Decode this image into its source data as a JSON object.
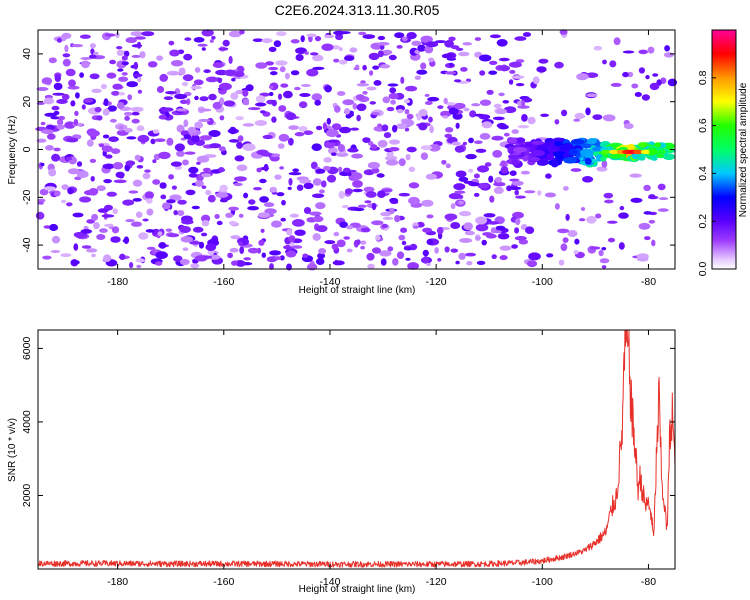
{
  "title": "C2E6.2024.313.11.30.R05",
  "chart_data": [
    {
      "type": "heatmap",
      "xlabel": "Height of straight line (km)",
      "ylabel": "Frequency (Hz)",
      "xlim": [
        -195,
        -75
      ],
      "ylim": [
        -50,
        50
      ],
      "x_ticks": [
        "-180",
        "-160",
        "-140",
        "-120",
        "-100",
        "-80"
      ],
      "y_ticks": [
        "-40",
        "-20",
        "0",
        "20",
        "40"
      ],
      "grid": false,
      "colorbar": {
        "label": "Normalized spectral amplitude",
        "range": [
          0.0,
          1.0
        ],
        "ticks": [
          "0.0",
          "0.2",
          "0.4",
          "0.6",
          "0.8"
        ],
        "colormap": "rainbow (white, purple, blue, cyan, green, yellow, orange, red, magenta)"
      },
      "description_of_signal": {
        "noise_amplitude": 0.12,
        "signal_start_km": -106,
        "signal_peak_km": -83,
        "signal_peak_frequency_hz": -1,
        "signal_peak_amplitude": 0.92
      }
    },
    {
      "type": "line",
      "xlabel": "Height of straight line (km)",
      "ylabel": "SNR (10 * v/v)",
      "xlim": [
        -195,
        -75
      ],
      "ylim": [
        0,
        6500
      ],
      "x_ticks": [
        "-180",
        "-160",
        "-140",
        "-120",
        "-100",
        "-80"
      ],
      "y_ticks": [
        "2000",
        "4000",
        "6000"
      ],
      "grid": false,
      "series_color": "#e8302a",
      "x": [
        -195,
        -190,
        -180,
        -170,
        -160,
        -150,
        -140,
        -130,
        -120,
        -110,
        -104,
        -100,
        -96,
        -92,
        -90,
        -88,
        -87,
        -86,
        -85,
        -84.5,
        -84,
        -83.5,
        -83,
        -82.5,
        -82,
        -81.5,
        -81,
        -80.5,
        -80,
        -79.5,
        -79,
        -78.5,
        -78,
        -77.5,
        -77,
        -76.5,
        -76,
        -75.5,
        -75
      ],
      "y": [
        150,
        150,
        150,
        140,
        140,
        140,
        130,
        130,
        130,
        140,
        170,
        220,
        330,
        500,
        720,
        1000,
        1600,
        2000,
        3600,
        5900,
        6400,
        5200,
        4000,
        3300,
        2200,
        2500,
        2000,
        1700,
        1800,
        1500,
        800,
        3000,
        4700,
        2300,
        1800,
        1000,
        3500,
        4400,
        2600
      ]
    }
  ]
}
